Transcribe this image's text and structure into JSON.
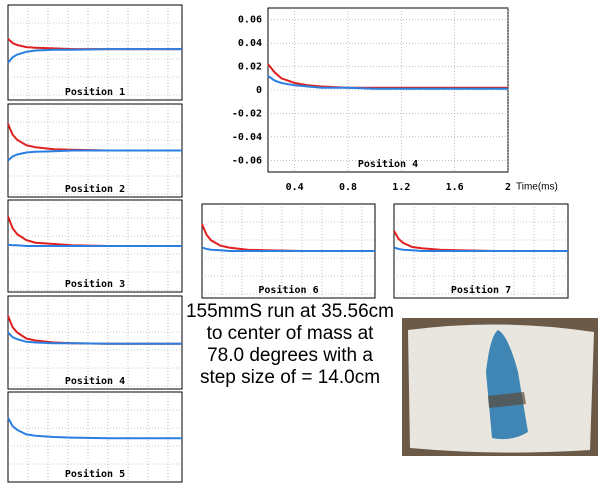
{
  "chart_data": [
    {
      "type": "line",
      "title": "Position 1",
      "x": [
        0.1,
        0.15,
        0.2,
        0.3,
        0.4,
        0.6,
        0.8,
        1.2,
        1.6,
        2.0
      ],
      "xlim": [
        0.1,
        2
      ],
      "ylim": [
        -0.07,
        0.07
      ],
      "grid": true,
      "series": [
        {
          "color": "#e02020",
          "values": [
            0.02,
            0.014,
            0.011,
            0.008,
            0.007,
            0.006,
            0.005,
            0.005,
            0.005,
            0.005
          ]
        },
        {
          "color": "#2a7fe0",
          "values": [
            -0.015,
            -0.007,
            -0.003,
            0.001,
            0.003,
            0.004,
            0.004,
            0.005,
            0.005,
            0.005
          ]
        }
      ]
    },
    {
      "type": "line",
      "title": "Position 2",
      "x": [
        0.1,
        0.15,
        0.2,
        0.3,
        0.4,
        0.6,
        0.8,
        1.2,
        1.6,
        2.0
      ],
      "xlim": [
        0.1,
        2
      ],
      "ylim": [
        -0.07,
        0.07
      ],
      "grid": true,
      "series": [
        {
          "color": "#e02020",
          "values": [
            0.04,
            0.024,
            0.016,
            0.008,
            0.005,
            0.002,
            0.001,
            0,
            0,
            0
          ]
        },
        {
          "color": "#2a7fe0",
          "values": [
            -0.015,
            -0.009,
            -0.006,
            -0.003,
            -0.002,
            -0.001,
            0,
            0,
            0,
            0
          ]
        }
      ]
    },
    {
      "type": "line",
      "title": "Position 3",
      "x": [
        0.1,
        0.15,
        0.2,
        0.3,
        0.4,
        0.6,
        0.8,
        1.2,
        1.6,
        2.0
      ],
      "xlim": [
        0.1,
        2
      ],
      "ylim": [
        -0.07,
        0.07
      ],
      "grid": true,
      "series": [
        {
          "color": "#e02020",
          "values": [
            0.045,
            0.027,
            0.018,
            0.009,
            0.005,
            0.003,
            0.001,
            0,
            0,
            0
          ]
        },
        {
          "color": "#2a7fe0",
          "values": [
            0.002,
            0.001,
            0.001,
            0,
            0,
            0,
            0,
            0,
            0,
            0
          ]
        }
      ]
    },
    {
      "type": "line",
      "title": "Position 4",
      "x": [
        0.1,
        0.15,
        0.2,
        0.3,
        0.4,
        0.6,
        0.8,
        1.2,
        1.6,
        2.0
      ],
      "xlim": [
        0.1,
        2
      ],
      "ylim": [
        -0.07,
        0.07
      ],
      "grid": true,
      "series": [
        {
          "color": "#e02020",
          "values": [
            0.04,
            0.023,
            0.015,
            0.006,
            0.003,
            0,
            -0.001,
            -0.002,
            -0.002,
            -0.002
          ]
        },
        {
          "color": "#2a7fe0",
          "values": [
            0.015,
            0.008,
            0.005,
            0.001,
            0,
            -0.001,
            -0.001,
            -0.002,
            -0.002,
            -0.002
          ]
        }
      ]
    },
    {
      "type": "line",
      "title": "Position 5",
      "x": [
        0.1,
        0.15,
        0.2,
        0.3,
        0.4,
        0.6,
        0.8,
        1.2,
        1.6,
        2.0
      ],
      "xlim": [
        0.1,
        2
      ],
      "ylim": [
        -0.07,
        0.07
      ],
      "grid": true,
      "series": [
        {
          "color": "#2a7fe0",
          "values": [
            0.03,
            0.017,
            0.011,
            0.004,
            0.002,
            0,
            -0.001,
            -0.002,
            -0.002,
            -0.002
          ]
        }
      ]
    },
    {
      "type": "line",
      "title": "Position 4",
      "xlabel": "Time(ms)",
      "x": [
        0.2,
        0.25,
        0.3,
        0.4,
        0.5,
        0.6,
        0.8,
        1.0,
        1.2,
        1.4,
        1.6,
        1.8,
        2.0
      ],
      "xlim": [
        0.2,
        2
      ],
      "ylim": [
        -0.07,
        0.07
      ],
      "xticks": [
        0.4,
        0.8,
        1.2,
        1.6,
        2
      ],
      "yticks": [
        -0.06,
        -0.04,
        -0.02,
        0,
        0.02,
        0.04,
        0.06
      ],
      "grid": true,
      "series": [
        {
          "color": "#e02020",
          "values": [
            0.022,
            0.015,
            0.01,
            0.006,
            0.004,
            0.003,
            0.002,
            0.002,
            0.002,
            0.002,
            0.002,
            0.002,
            0.002
          ]
        },
        {
          "color": "#2a7fe0",
          "values": [
            0.012,
            0.008,
            0.006,
            0.004,
            0.003,
            0.002,
            0.002,
            0.001,
            0.001,
            0.001,
            0.001,
            0.001,
            0.001
          ]
        }
      ]
    },
    {
      "type": "line",
      "title": "Position 6",
      "x": [
        0.1,
        0.15,
        0.2,
        0.3,
        0.4,
        0.6,
        0.8,
        1.2,
        1.6,
        2.0
      ],
      "xlim": [
        0.1,
        2
      ],
      "ylim": [
        -0.07,
        0.07
      ],
      "grid": true,
      "series": [
        {
          "color": "#e02020",
          "values": [
            0.04,
            0.024,
            0.016,
            0.008,
            0.005,
            0.002,
            0.001,
            0,
            0,
            0
          ]
        },
        {
          "color": "#2a7fe0",
          "values": [
            0.005,
            0.003,
            0.002,
            0.001,
            0,
            0,
            0,
            0,
            0,
            0
          ]
        }
      ]
    },
    {
      "type": "line",
      "title": "Position 7",
      "x": [
        0.1,
        0.15,
        0.2,
        0.3,
        0.4,
        0.6,
        0.8,
        1.2,
        1.6,
        2.0
      ],
      "xlim": [
        0.1,
        2
      ],
      "ylim": [
        -0.07,
        0.07
      ],
      "grid": true,
      "series": [
        {
          "color": "#e02020",
          "values": [
            0.03,
            0.018,
            0.012,
            0.006,
            0.004,
            0.002,
            0.001,
            0,
            0,
            0
          ]
        },
        {
          "color": "#2a7fe0",
          "values": [
            0.005,
            0.003,
            0.002,
            0.001,
            0,
            0,
            0,
            0,
            0,
            0
          ]
        }
      ]
    }
  ],
  "caption": [
    "155mmS run at 35.56cm",
    "to center of mass at",
    "78.0 degrees with a",
    "step size of = 14.0cm"
  ]
}
